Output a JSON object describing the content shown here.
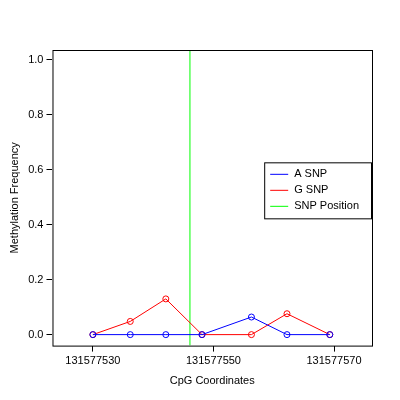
{
  "chart_data": {
    "type": "line",
    "x_label": "CpG Coordinates",
    "y_label": "Methylation Frequency",
    "x": [
      131577530,
      131577536.2,
      131577542.1,
      131577548.1,
      131577556.3,
      131577562.2,
      131577569.3
    ],
    "series": [
      {
        "name": "A SNP",
        "color": "#0000ff",
        "marker": "circle",
        "values": [
          0,
          0,
          0,
          0,
          0.064,
          0,
          0
        ]
      },
      {
        "name": "G SNP",
        "color": "#ff0000",
        "marker": "circle",
        "values": [
          0,
          0.048,
          0.13,
          0,
          0,
          0.076,
          0
        ]
      }
    ],
    "snp_position": {
      "name": "SNP Position",
      "color": "#00ff00",
      "x": 131577546.1
    },
    "xlim": [
      131577523.3,
      131577576.3
    ],
    "xticks": [
      131577530,
      131577550,
      131577570
    ],
    "ylim": [
      -0.04,
      1.036
    ],
    "yticks": [
      {
        "value": 0,
        "label": "0.0"
      },
      {
        "value": 0.2,
        "label": "0.2"
      },
      {
        "value": 0.4,
        "label": "0.4"
      },
      {
        "value": 0.6,
        "label": "0.6"
      },
      {
        "value": 0.8,
        "label": "0.8"
      },
      {
        "value": 1,
        "label": "1.0"
      }
    ],
    "grid": false,
    "legend": "right"
  }
}
